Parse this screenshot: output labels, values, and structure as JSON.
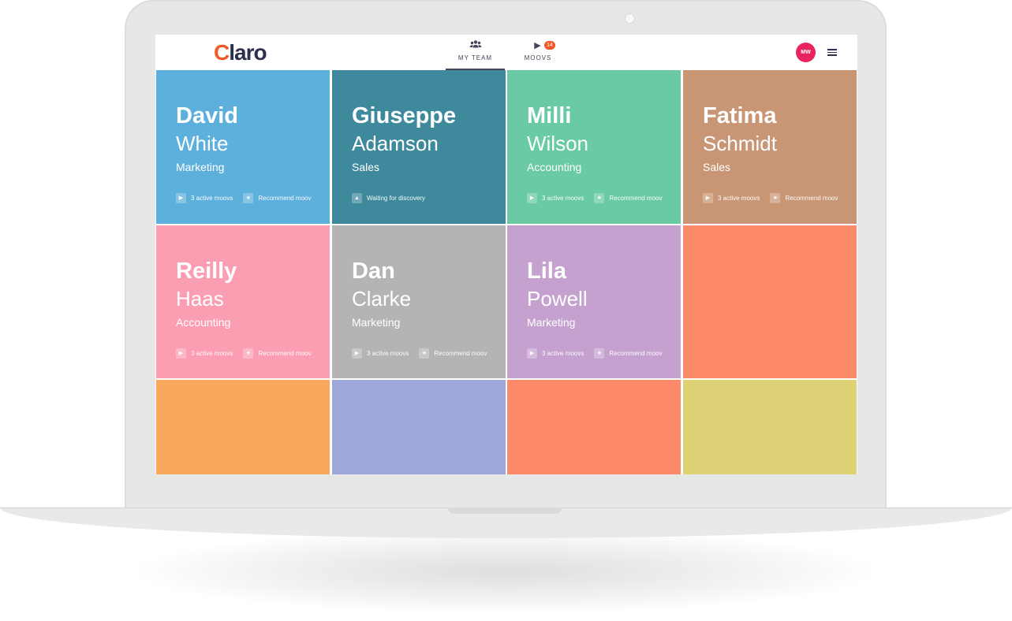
{
  "header": {
    "logo_letter": "C",
    "logo_rest": "laro",
    "tabs": [
      {
        "label": "MY TEAM",
        "icon": "team-icon",
        "active": true
      },
      {
        "label": "MOOVS",
        "icon": "play-icon",
        "badge": "14"
      }
    ],
    "avatar_initials": "MW",
    "menu_icon": "hamburger-menu-icon"
  },
  "team": [
    {
      "first": "David",
      "last": "White",
      "dept": "Marketing",
      "color": "#5eb0dc",
      "actions": [
        {
          "icon": "play-icon",
          "label": "3 active moovs"
        },
        {
          "icon": "star-icon",
          "label": "Recommend moov"
        }
      ]
    },
    {
      "first": "Giuseppe",
      "last": "Adamson",
      "dept": "Sales",
      "color": "#3e8a9c",
      "actions": [
        {
          "icon": "warning-icon",
          "label": "Waiting for discovery"
        }
      ]
    },
    {
      "first": "Milli",
      "last": "Wilson",
      "dept": "Accounting",
      "color": "#69caa5",
      "actions": [
        {
          "icon": "play-icon",
          "label": "3 active moovs"
        },
        {
          "icon": "star-icon",
          "label": "Recommend moov"
        }
      ]
    },
    {
      "first": "Fatima",
      "last": "Schmidt",
      "dept": "Sales",
      "color": "#c99675",
      "actions": [
        {
          "icon": "play-icon",
          "label": "3 active moovs"
        },
        {
          "icon": "star-icon",
          "label": "Recommend moov"
        }
      ]
    },
    {
      "first": "Reilly",
      "last": "Haas",
      "dept": "Accounting",
      "color": "#fb9eb2",
      "actions": [
        {
          "icon": "play-icon",
          "label": "3 active moovs"
        },
        {
          "icon": "star-icon",
          "label": "Recommend moov"
        }
      ]
    },
    {
      "first": "Dan",
      "last": "Clarke",
      "dept": "Marketing",
      "color": "#b4b4b4",
      "actions": [
        {
          "icon": "play-icon",
          "label": "3 active moovs"
        },
        {
          "icon": "star-icon",
          "label": "Recommend moov"
        }
      ]
    },
    {
      "first": "Lila",
      "last": "Powell",
      "dept": "Marketing",
      "color": "#c5a1cf",
      "actions": [
        {
          "icon": "play-icon",
          "label": "3 active moovs"
        },
        {
          "icon": "star-icon",
          "label": "Recommend moov"
        }
      ]
    },
    {
      "color": "#fc8a6b"
    },
    {
      "color": "#fba85c"
    },
    {
      "color": "#9ea7d7"
    },
    {
      "color": "#fc8a6b"
    },
    {
      "color": "#ddd276"
    }
  ]
}
